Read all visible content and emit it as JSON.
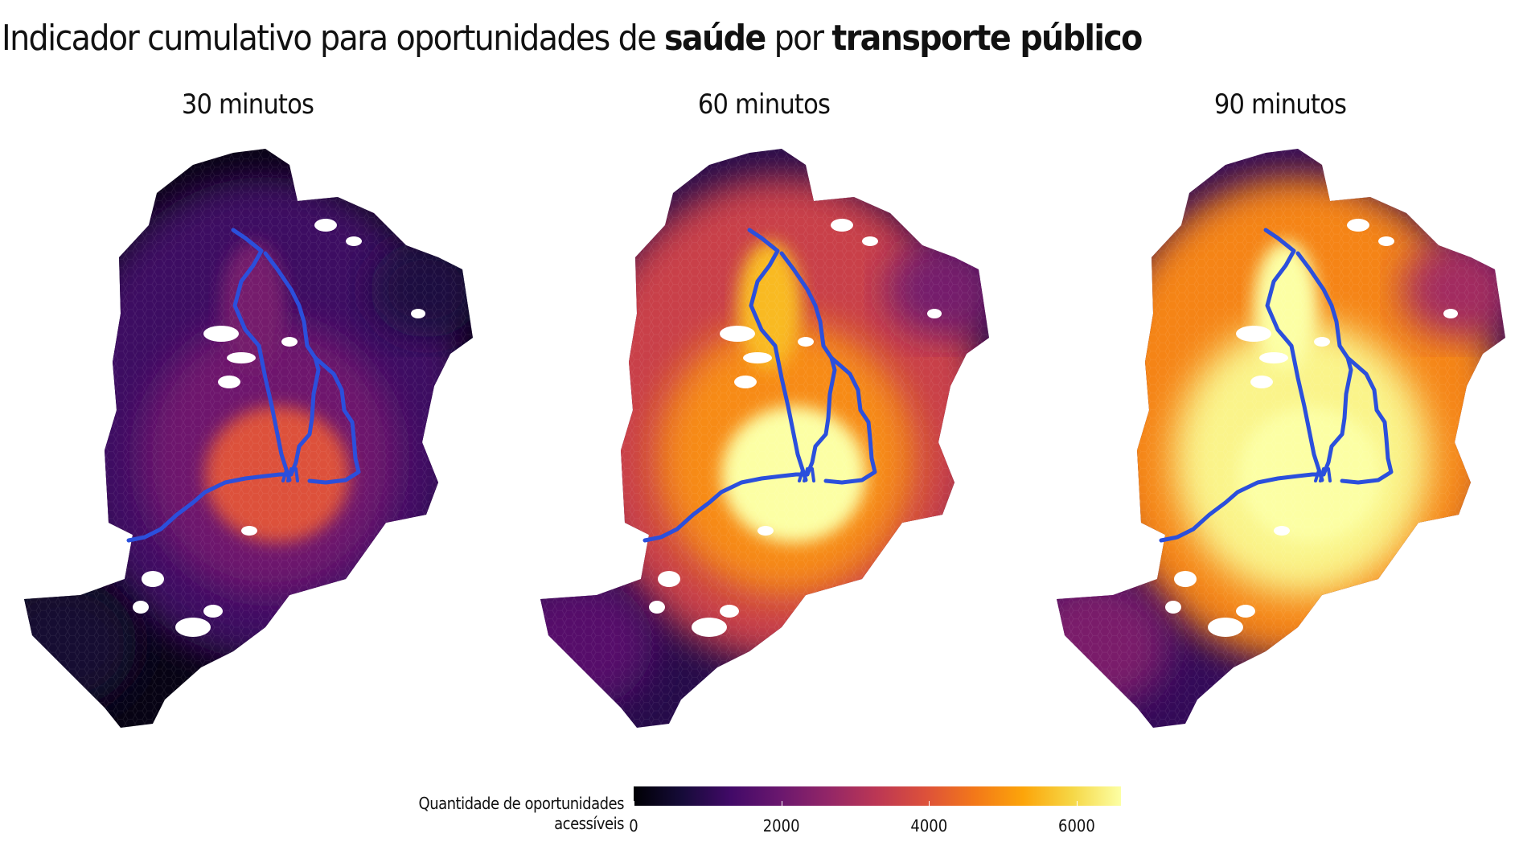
{
  "title": {
    "prefix": "Indicador cumulativo para oportunidades de ",
    "bold1": "saúde",
    "middle": " por ",
    "bold2": "transporte público"
  },
  "panels": [
    {
      "label": "30 minutos",
      "level": 0.25
    },
    {
      "label": "60 minutos",
      "level": 0.72
    },
    {
      "label": "90 minutos",
      "level": 0.97
    }
  ],
  "colors": {
    "transit_line": "#2b4fdc",
    "scale": [
      "#000004",
      "#160b39",
      "#420a68",
      "#6a176e",
      "#932667",
      "#bc3754",
      "#dd513a",
      "#f37819",
      "#fca50a",
      "#f6d746",
      "#fcffa4"
    ]
  },
  "legend": {
    "title_line1": "Quantidade de oportunidades",
    "title_line2": "acessíveis",
    "ticks": [
      {
        "label": "0",
        "value": 0
      },
      {
        "label": "2000",
        "value": 2000
      },
      {
        "label": "4000",
        "value": 4000
      },
      {
        "label": "6000",
        "value": 6000
      }
    ],
    "max": 6600
  }
}
